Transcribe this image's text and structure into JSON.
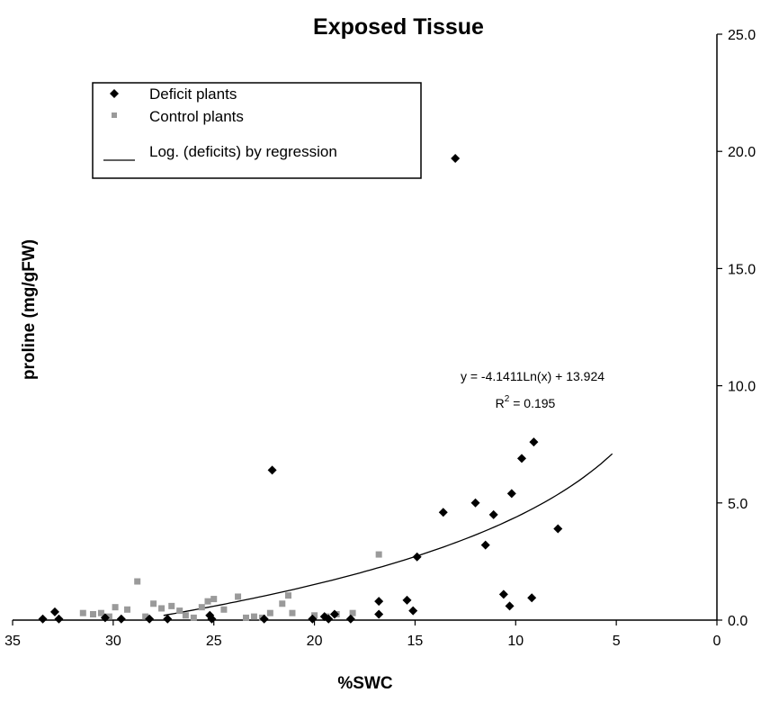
{
  "chart_data": {
    "type": "scatter",
    "title": "Exposed Tissue",
    "xlabel": "%SWC",
    "ylabel": "proline (mg/gFW)",
    "xlim": [
      35,
      0
    ],
    "x_reversed": true,
    "ylim": [
      0,
      25
    ],
    "y_axis_side": "right",
    "grid": false,
    "legend_position": "top-left",
    "x_ticks": [
      "35",
      "30",
      "25",
      "20",
      "15",
      "10",
      "5",
      "0"
    ],
    "y_ticks": [
      "0.0",
      "5.0",
      "10.0",
      "15.0",
      "20.0",
      "25.0"
    ],
    "legend": [
      {
        "label": "Deficit plants",
        "marker": "diamond",
        "color": "#000000"
      },
      {
        "label": "Control plants",
        "marker": "square",
        "color": "#9a9a9a"
      },
      {
        "label": "Log. (deficits) by regression",
        "marker": "line",
        "color": "#000000"
      }
    ],
    "annotation": {
      "equation": "y = -4.1411Ln(x) + 13.924",
      "r2_prefix": "R",
      "r2_sup": "2",
      "r2_suffix": " = 0.195"
    },
    "regression": {
      "type": "log",
      "a": -4.1411,
      "b": 13.924,
      "x_from": 27.5,
      "x_to": 5.2
    },
    "series": [
      {
        "name": "Deficit plants",
        "marker": "diamond",
        "color": "#000000",
        "points": [
          [
            33.5,
            0.05
          ],
          [
            32.9,
            0.35
          ],
          [
            32.7,
            0.05
          ],
          [
            30.4,
            0.1
          ],
          [
            29.6,
            0.05
          ],
          [
            28.2,
            0.05
          ],
          [
            27.3,
            0.05
          ],
          [
            25.2,
            0.2
          ],
          [
            25.1,
            0.05
          ],
          [
            22.5,
            0.05
          ],
          [
            22.1,
            6.4
          ],
          [
            20.1,
            0.05
          ],
          [
            19.5,
            0.15
          ],
          [
            19.3,
            0.05
          ],
          [
            19.0,
            0.25
          ],
          [
            18.2,
            0.05
          ],
          [
            16.8,
            0.25
          ],
          [
            16.8,
            0.8
          ],
          [
            15.4,
            0.85
          ],
          [
            15.1,
            0.4
          ],
          [
            14.9,
            2.7
          ],
          [
            13.6,
            4.6
          ],
          [
            13.0,
            19.7
          ],
          [
            12.0,
            5.0
          ],
          [
            11.5,
            3.2
          ],
          [
            11.1,
            4.5
          ],
          [
            10.6,
            1.1
          ],
          [
            10.3,
            0.6
          ],
          [
            10.2,
            5.4
          ],
          [
            9.7,
            6.9
          ],
          [
            9.2,
            0.95
          ],
          [
            9.1,
            7.6
          ],
          [
            7.9,
            3.9
          ]
        ]
      },
      {
        "name": "Control plants",
        "marker": "square",
        "color": "#9a9a9a",
        "points": [
          [
            31.5,
            0.3
          ],
          [
            31.0,
            0.25
          ],
          [
            30.6,
            0.3
          ],
          [
            30.2,
            0.15
          ],
          [
            29.9,
            0.55
          ],
          [
            29.3,
            0.45
          ],
          [
            28.8,
            1.65
          ],
          [
            28.4,
            0.15
          ],
          [
            28.0,
            0.7
          ],
          [
            27.6,
            0.5
          ],
          [
            27.1,
            0.6
          ],
          [
            26.7,
            0.4
          ],
          [
            26.4,
            0.2
          ],
          [
            26.0,
            0.1
          ],
          [
            25.6,
            0.55
          ],
          [
            25.3,
            0.8
          ],
          [
            25.0,
            0.9
          ],
          [
            24.5,
            0.45
          ],
          [
            23.8,
            1.0
          ],
          [
            23.4,
            0.1
          ],
          [
            23.0,
            0.15
          ],
          [
            22.6,
            0.1
          ],
          [
            22.2,
            0.3
          ],
          [
            21.6,
            0.7
          ],
          [
            21.3,
            1.05
          ],
          [
            21.1,
            0.3
          ],
          [
            20.0,
            0.2
          ],
          [
            19.4,
            0.15
          ],
          [
            18.9,
            0.25
          ],
          [
            18.1,
            0.3
          ],
          [
            16.8,
            2.8
          ]
        ]
      }
    ]
  }
}
